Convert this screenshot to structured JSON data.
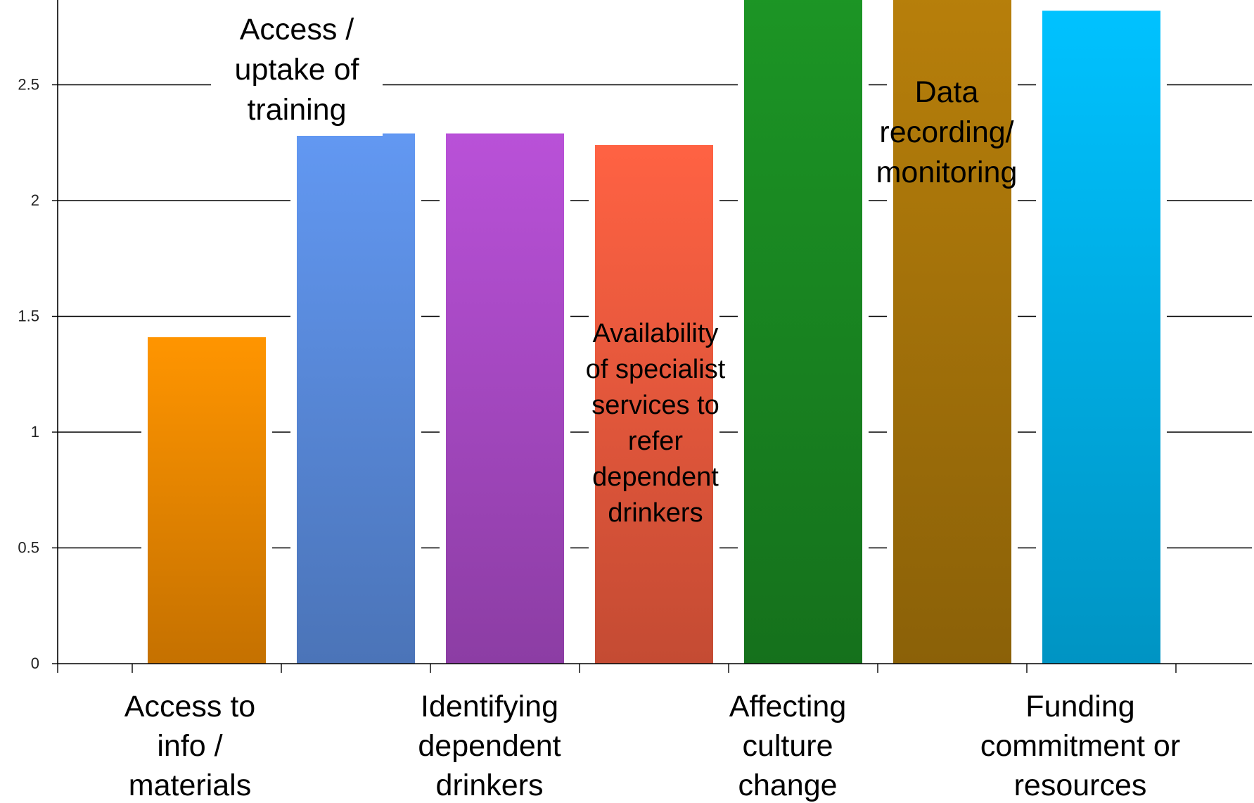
{
  "chart_data": {
    "type": "bar",
    "title": "",
    "xlabel": "",
    "ylabel": "",
    "ylim": [
      0,
      2.85
    ],
    "yticks": [
      0,
      0.5,
      1,
      1.5,
      2,
      2.5
    ],
    "grid": true,
    "legend": "none",
    "categories": [
      "Access to info / materials",
      "Access / uptake of training",
      "Identifying dependent drinkers",
      "Availability of specialist services to refer dependent drinkers",
      "Affecting culture change",
      "Data recording/ monitoring",
      "Funding commitment or resources"
    ],
    "values": [
      1.41,
      2.29,
      2.29,
      2.24,
      2.9,
      2.9,
      2.82
    ],
    "colors": [
      "#f08a00",
      "#5b8de0",
      "#ab4bc8",
      "#ef5b3e",
      "#1a8a22",
      "#a9760a",
      "#00b4ee"
    ],
    "axis_labels": [
      [
        "Access to",
        "info /",
        "materials"
      ],
      [],
      [
        "Identifying",
        "dependent",
        "drinkers"
      ],
      [],
      [
        "Affecting",
        "culture",
        "change"
      ],
      [],
      [
        "Funding",
        "commitment or",
        "resources"
      ]
    ],
    "bar_annotations": [
      [],
      [
        "Access /",
        "uptake of",
        "training"
      ],
      [],
      [
        "Availability",
        "of specialist",
        "services to",
        "refer",
        "dependent",
        "drinkers"
      ],
      [],
      [
        "Data",
        "recording/",
        "monitoring"
      ],
      []
    ]
  }
}
